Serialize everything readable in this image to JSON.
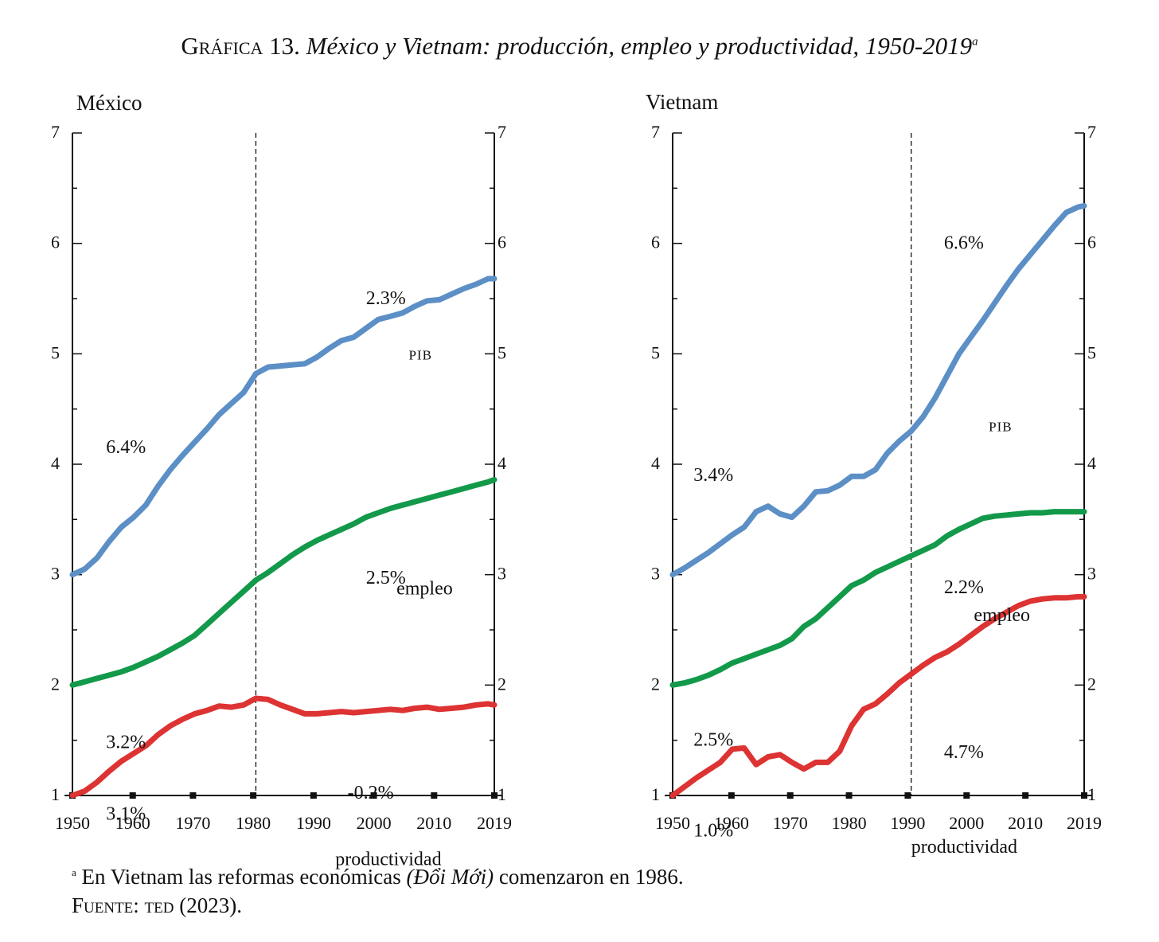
{
  "title": {
    "label": "Gráfica 13.",
    "text": "México y Vietnam: producción, empleo y productividad, 1950-2019",
    "marker": "a"
  },
  "footnote": {
    "marker": "a",
    "text_before": "En Vietnam las reformas económicas ",
    "text_italic": "(Đổi Mới)",
    "text_after": " comenzaron en 1986.",
    "source_label": "Fuente:",
    "source_org": "ted",
    "source_year": " (2023)."
  },
  "colors": {
    "pib": "#5b8fc6",
    "empleo": "#13994a",
    "productividad": "#dd3333"
  },
  "chart_data": [
    {
      "type": "line",
      "panel": "México",
      "xlim": [
        1950,
        2019
      ],
      "ylim": [
        1,
        7
      ],
      "yticks": [
        "1",
        "2",
        "3",
        "4",
        "5",
        "6",
        "7"
      ],
      "xticks": [
        "1950",
        "1960",
        "1970",
        "1980",
        "1990",
        "2000",
        "2010",
        "2019"
      ],
      "vline": 1980,
      "series": [
        {
          "name": "pib",
          "label": "PIB",
          "x": [
            1950,
            1952,
            1954,
            1956,
            1958,
            1960,
            1962,
            1964,
            1966,
            1968,
            1970,
            1972,
            1974,
            1976,
            1978,
            1980,
            1982,
            1984,
            1986,
            1988,
            1990,
            1992,
            1994,
            1996,
            1998,
            2000,
            2002,
            2004,
            2006,
            2008,
            2010,
            2012,
            2014,
            2016,
            2018,
            2019
          ],
          "y": [
            3.0,
            3.05,
            3.15,
            3.3,
            3.43,
            3.52,
            3.63,
            3.8,
            3.95,
            4.08,
            4.2,
            4.32,
            4.45,
            4.55,
            4.65,
            4.82,
            4.88,
            4.89,
            4.9,
            4.91,
            4.97,
            5.05,
            5.12,
            5.15,
            5.23,
            5.31,
            5.34,
            5.37,
            5.43,
            5.48,
            5.49,
            5.54,
            5.59,
            5.63,
            5.68,
            5.68
          ]
        },
        {
          "name": "empleo",
          "label": "empleo",
          "x": [
            1950,
            1952,
            1954,
            1956,
            1958,
            1960,
            1962,
            1964,
            1966,
            1968,
            1970,
            1972,
            1974,
            1976,
            1978,
            1980,
            1982,
            1984,
            1986,
            1988,
            1990,
            1992,
            1994,
            1996,
            1998,
            2000,
            2002,
            2004,
            2006,
            2008,
            2010,
            2012,
            2014,
            2016,
            2018,
            2019
          ],
          "y": [
            2.0,
            2.03,
            2.06,
            2.09,
            2.12,
            2.16,
            2.21,
            2.26,
            2.32,
            2.38,
            2.45,
            2.55,
            2.65,
            2.75,
            2.85,
            2.95,
            3.02,
            3.1,
            3.18,
            3.25,
            3.31,
            3.36,
            3.41,
            3.46,
            3.52,
            3.56,
            3.6,
            3.63,
            3.66,
            3.69,
            3.72,
            3.75,
            3.78,
            3.81,
            3.84,
            3.86
          ]
        },
        {
          "name": "productividad",
          "label": "productividad",
          "x": [
            1950,
            1952,
            1954,
            1956,
            1958,
            1960,
            1962,
            1964,
            1966,
            1968,
            1970,
            1972,
            1974,
            1976,
            1978,
            1980,
            1982,
            1984,
            1986,
            1988,
            1990,
            1992,
            1994,
            1996,
            1998,
            2000,
            2002,
            2004,
            2006,
            2008,
            2010,
            2012,
            2014,
            2016,
            2018,
            2019
          ],
          "y": [
            1.0,
            1.04,
            1.12,
            1.22,
            1.31,
            1.38,
            1.45,
            1.55,
            1.63,
            1.69,
            1.74,
            1.77,
            1.81,
            1.8,
            1.82,
            1.88,
            1.87,
            1.82,
            1.78,
            1.74,
            1.74,
            1.75,
            1.76,
            1.75,
            1.76,
            1.77,
            1.78,
            1.77,
            1.79,
            1.8,
            1.78,
            1.79,
            1.8,
            1.82,
            1.83,
            1.82
          ]
        }
      ],
      "annotations": [
        {
          "text": "6.4%",
          "x": 1955.5,
          "y": 4.1
        },
        {
          "text": "2.3%",
          "x": 1998,
          "y": 5.45
        },
        {
          "text": "PIB",
          "x": 2005,
          "y": 4.95
        },
        {
          "text": "2.5%",
          "x": 1998,
          "y": 2.92
        },
        {
          "text": "empleo",
          "x": 2003,
          "y": 2.82
        },
        {
          "text": "3.2%",
          "x": 1955.5,
          "y": 1.43
        },
        {
          "text": "3.1%",
          "x": 1955.5,
          "y": 0.78
        },
        {
          "text": "-0.2%",
          "x": 1995,
          "y": 0.97
        },
        {
          "text": "productividad",
          "x": 1993,
          "y": 0.37
        }
      ]
    },
    {
      "type": "line",
      "panel": "Vietnam",
      "xlim": [
        1950,
        2019
      ],
      "ylim": [
        1,
        7
      ],
      "yticks": [
        "1",
        "2",
        "3",
        "4",
        "5",
        "6",
        "7"
      ],
      "xticks": [
        "1950",
        "1960",
        "1970",
        "1980",
        "1990",
        "2000",
        "2010",
        "2019"
      ],
      "vline": 1990,
      "series": [
        {
          "name": "pib",
          "label": "PIB",
          "x": [
            1950,
            1952,
            1954,
            1956,
            1958,
            1960,
            1962,
            1964,
            1966,
            1968,
            1970,
            1972,
            1974,
            1976,
            1978,
            1980,
            1982,
            1984,
            1986,
            1988,
            1990,
            1992,
            1994,
            1996,
            1998,
            2000,
            2002,
            2004,
            2006,
            2008,
            2010,
            2012,
            2014,
            2016,
            2018,
            2019
          ],
          "y": [
            3.0,
            3.06,
            3.13,
            3.2,
            3.28,
            3.36,
            3.43,
            3.57,
            3.62,
            3.55,
            3.52,
            3.62,
            3.75,
            3.76,
            3.81,
            3.89,
            3.89,
            3.95,
            4.1,
            4.21,
            4.3,
            4.43,
            4.6,
            4.8,
            5.0,
            5.15,
            5.3,
            5.46,
            5.62,
            5.77,
            5.9,
            6.03,
            6.16,
            6.28,
            6.33,
            6.34
          ]
        },
        {
          "name": "empleo",
          "label": "empleo",
          "x": [
            1950,
            1952,
            1954,
            1956,
            1958,
            1960,
            1962,
            1964,
            1966,
            1968,
            1970,
            1972,
            1974,
            1976,
            1978,
            1980,
            1982,
            1984,
            1986,
            1988,
            1990,
            1992,
            1994,
            1996,
            1998,
            2000,
            2002,
            2004,
            2006,
            2008,
            2010,
            2012,
            2014,
            2016,
            2018,
            2019
          ],
          "y": [
            2.0,
            2.02,
            2.05,
            2.09,
            2.14,
            2.2,
            2.24,
            2.28,
            2.32,
            2.36,
            2.42,
            2.53,
            2.6,
            2.7,
            2.8,
            2.9,
            2.95,
            3.02,
            3.07,
            3.12,
            3.17,
            3.22,
            3.27,
            3.35,
            3.41,
            3.46,
            3.51,
            3.53,
            3.54,
            3.55,
            3.56,
            3.56,
            3.57,
            3.57,
            3.57,
            3.57
          ]
        },
        {
          "name": "productividad",
          "label": "productividad",
          "x": [
            1950,
            1952,
            1954,
            1956,
            1958,
            1960,
            1962,
            1964,
            1966,
            1968,
            1970,
            1972,
            1974,
            1976,
            1978,
            1980,
            1982,
            1984,
            1986,
            1988,
            1990,
            1992,
            1994,
            1996,
            1998,
            2000,
            2002,
            2004,
            2006,
            2008,
            2010,
            2012,
            2014,
            2016,
            2018,
            2019
          ],
          "y": [
            1.0,
            1.08,
            1.16,
            1.23,
            1.3,
            1.42,
            1.43,
            1.28,
            1.35,
            1.37,
            1.3,
            1.24,
            1.3,
            1.3,
            1.4,
            1.63,
            1.78,
            1.83,
            1.92,
            2.02,
            2.1,
            2.18,
            2.25,
            2.3,
            2.37,
            2.45,
            2.53,
            2.6,
            2.66,
            2.72,
            2.76,
            2.78,
            2.79,
            2.79,
            2.8,
            2.8
          ]
        }
      ],
      "annotations": [
        {
          "text": "3.4%",
          "x": 1953.5,
          "y": 3.85
        },
        {
          "text": "6.6%",
          "x": 1995.5,
          "y": 5.95
        },
        {
          "text": "PIB",
          "x": 2003,
          "y": 4.3
        },
        {
          "text": "2.2%",
          "x": 1995.5,
          "y": 2.83
        },
        {
          "text": "empleo",
          "x": 2000.5,
          "y": 2.58
        },
        {
          "text": "2.5%",
          "x": 1953.5,
          "y": 1.45
        },
        {
          "text": "4.7%",
          "x": 1995.5,
          "y": 1.34
        },
        {
          "text": "1.0%",
          "x": 1953.5,
          "y": 0.63
        },
        {
          "text": "productividad",
          "x": 1990,
          "y": 0.48
        }
      ]
    }
  ]
}
